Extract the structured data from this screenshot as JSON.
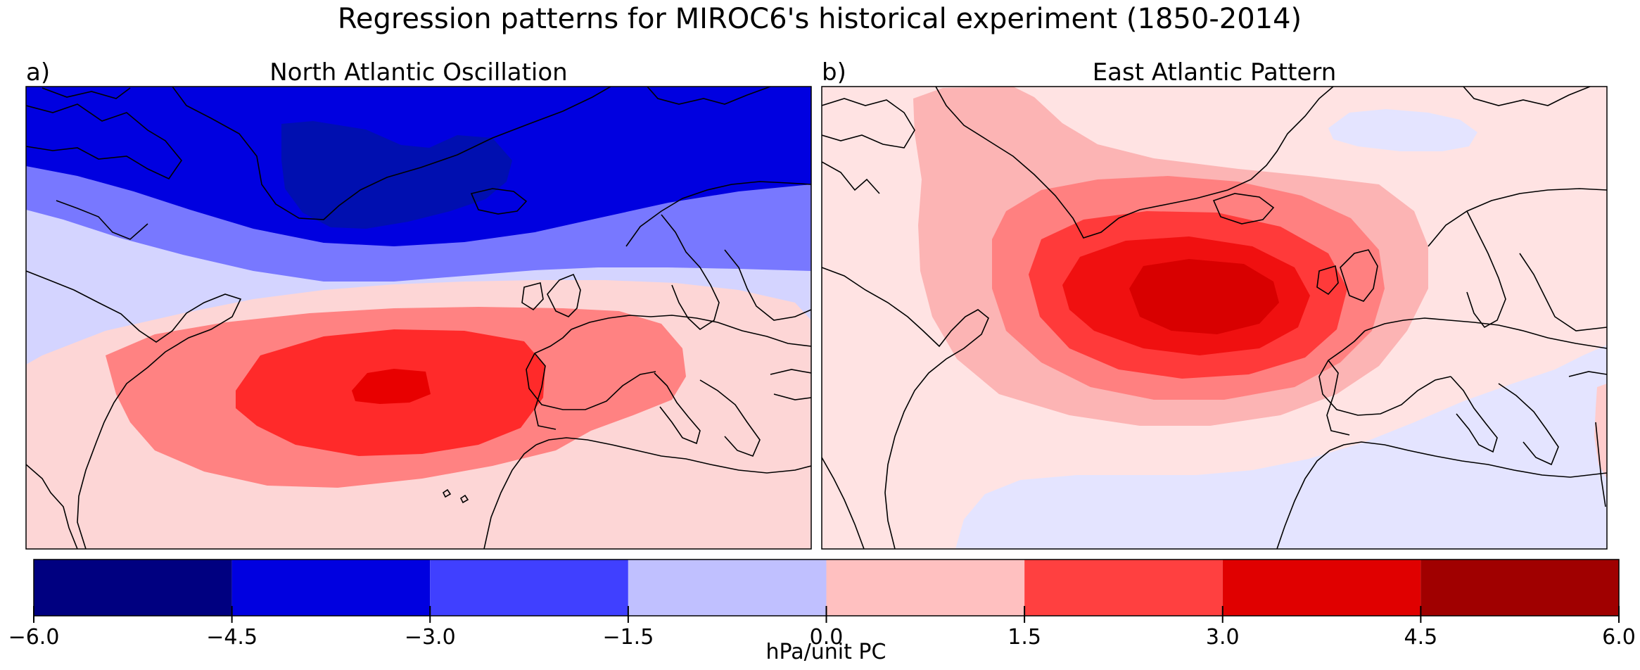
{
  "figure": {
    "suptitle": "Regression patterns for MIROC6's historical experiment (1850-2014)"
  },
  "panels": [
    {
      "letter": "a)",
      "title": "North Atlantic Oscillation"
    },
    {
      "letter": "b)",
      "title": "East Atlantic Pattern"
    }
  ],
  "colorbar": {
    "label": "hPa/unit PC",
    "ticks": [
      "−6.0",
      "−4.5",
      "−3.0",
      "−1.5",
      "0.0",
      "1.5",
      "3.0",
      "4.5",
      "6.0"
    ],
    "levels": [
      -6.0,
      -4.5,
      -3.0,
      -1.5,
      0.0,
      1.5,
      3.0,
      4.5,
      6.0
    ],
    "colors": [
      "#000080",
      "#0000e0",
      "#4040ff",
      "#c0c0ff",
      "#ffc0c0",
      "#ff4040",
      "#e00000",
      "#a00000"
    ]
  },
  "chart_data": [
    {
      "type": "heatmap",
      "title": "North Atlantic Oscillation",
      "units": "hPa/unit PC",
      "levels": [
        -6.0,
        -4.5,
        -3.0,
        -1.5,
        0.0,
        1.5,
        3.0,
        4.5,
        6.0
      ],
      "colors": [
        "#000080",
        "#0000e0",
        "#4040ff",
        "#c0c0ff",
        "#ffc0c0",
        "#ff4040",
        "#e00000",
        "#a00000"
      ],
      "features": [
        {
          "name": "negative-centre",
          "min_value": -5.0
        },
        {
          "name": "positive-centre",
          "max_value": 3.3
        }
      ]
    },
    {
      "type": "heatmap",
      "title": "East Atlantic Pattern",
      "units": "hPa/unit PC",
      "levels": [
        -6.0,
        -4.5,
        -3.0,
        -1.5,
        0.0,
        1.5,
        3.0,
        4.5,
        6.0
      ],
      "colors": [
        "#000080",
        "#0000e0",
        "#4040ff",
        "#c0c0ff",
        "#ffc0c0",
        "#ff4040",
        "#e00000",
        "#a00000"
      ],
      "features": [
        {
          "name": "positive-centre",
          "max_value": 3.9
        },
        {
          "name": "weak-negative-areas",
          "min_value": -0.5
        }
      ]
    }
  ]
}
